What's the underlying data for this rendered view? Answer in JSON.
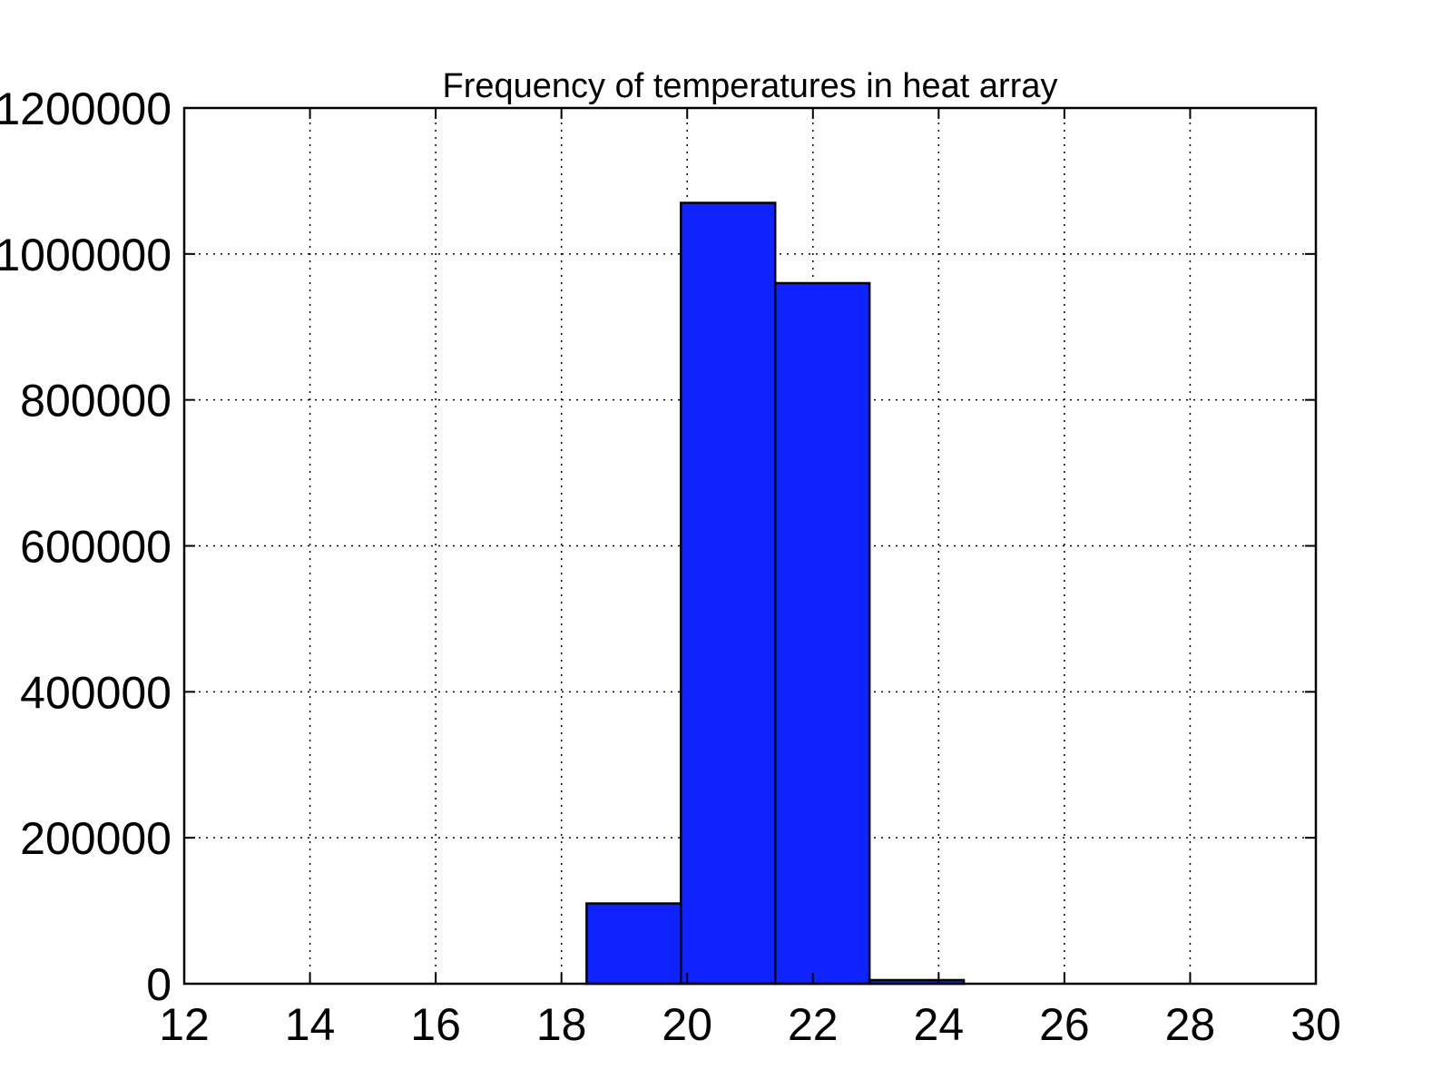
{
  "chart_data": {
    "type": "bar",
    "title": "Frequency of temperatures in heat array",
    "xlabel": "",
    "ylabel": "",
    "xlim": [
      12,
      30
    ],
    "ylim": [
      0,
      1200000
    ],
    "x_ticks": [
      "12",
      "14",
      "16",
      "18",
      "20",
      "22",
      "24",
      "26",
      "28",
      "30"
    ],
    "y_ticks": [
      "0",
      "200000",
      "400000",
      "600000",
      "800000",
      "1000000",
      "1200000"
    ],
    "grid": true,
    "bar_color": "#0f23ff",
    "bins": [
      {
        "x_start": 12.0,
        "x_end": 13.5,
        "value": 0
      },
      {
        "x_start": 13.5,
        "x_end": 15.0,
        "value": 0
      },
      {
        "x_start": 15.0,
        "x_end": 16.5,
        "value": 0
      },
      {
        "x_start": 16.5,
        "x_end": 18.0,
        "value": 0
      },
      {
        "x_start": 18.4,
        "x_end": 19.9,
        "value": 110000
      },
      {
        "x_start": 19.9,
        "x_end": 21.4,
        "value": 1070000
      },
      {
        "x_start": 21.4,
        "x_end": 22.9,
        "value": 960000
      },
      {
        "x_start": 22.9,
        "x_end": 24.4,
        "value": 5000
      },
      {
        "x_start": 24.4,
        "x_end": 25.9,
        "value": 0
      },
      {
        "x_start": 25.9,
        "x_end": 27.4,
        "value": 0
      },
      {
        "x_start": 27.4,
        "x_end": 28.9,
        "value": 0
      }
    ]
  }
}
